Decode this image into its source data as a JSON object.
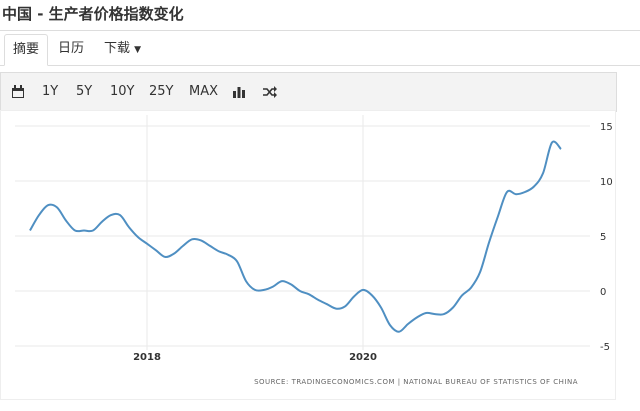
{
  "header": {
    "title": "中国 - 生产者价格指数变化"
  },
  "tabs": [
    "摘要",
    "日历",
    "下载"
  ],
  "toolbar": [
    "1Y",
    "5Y",
    "10Y",
    "25Y",
    "MAX"
  ],
  "chart_data": {
    "type": "line",
    "categories": [
      null,
      null,
      null,
      null,
      null,
      null,
      null,
      null,
      null,
      null,
      null,
      null,
      null,
      "2018",
      null,
      null,
      null,
      null,
      null,
      null,
      null,
      null,
      null,
      null,
      null,
      null,
      null,
      null,
      null,
      null,
      null,
      null,
      null,
      null,
      null,
      null,
      null,
      "2020",
      null,
      null,
      null,
      null,
      null,
      null,
      null,
      null,
      null,
      null,
      null,
      null,
      null,
      null,
      null,
      null,
      null,
      null,
      null,
      null,
      null,
      null
    ],
    "series": [
      {
        "color": "#4f8fc2",
        "values": [
          5.5,
          6.9,
          7.8,
          7.6,
          6.4,
          5.5,
          5.5,
          5.5,
          6.3,
          6.9,
          6.9,
          5.8,
          4.9,
          4.3,
          3.7,
          3.1,
          3.4,
          4.1,
          4.7,
          4.6,
          4.1,
          3.6,
          3.3,
          2.7,
          0.9,
          0.1,
          0.1,
          0.4,
          0.9,
          0.6,
          0.0,
          -0.3,
          -0.8,
          -1.2,
          -1.6,
          -1.4,
          -0.5,
          0.1,
          -0.4,
          -1.5,
          -3.1,
          -3.7,
          -3.0,
          -2.4,
          -2.0,
          -2.1,
          -2.1,
          -1.5,
          -0.4,
          0.3,
          1.7,
          4.4,
          6.8,
          9.0,
          8.8,
          9.0,
          9.5,
          10.7,
          13.5,
          12.9
        ]
      }
    ],
    "ylim": [
      -5,
      15
    ],
    "yticks": [
      -5,
      0,
      5,
      10,
      15
    ],
    "grid": true,
    "source": "SOURCE: TRADINGECONOMICS.COM | NATIONAL BUREAU OF STATISTICS OF CHINA"
  }
}
